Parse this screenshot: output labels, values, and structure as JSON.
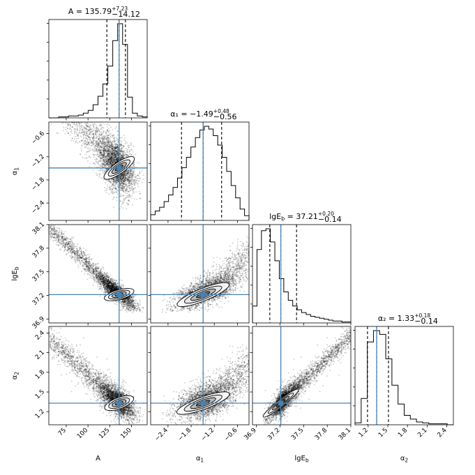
{
  "chart_data": {
    "type": "corner",
    "parameters": [
      {
        "key": "A",
        "label": "A",
        "label_sub": "",
        "range": [
          55,
          168
        ],
        "ticks": [
          75,
          100,
          125,
          150
        ],
        "tick_labels": [
          "75",
          "100",
          "125",
          "150"
        ],
        "median": 135.79,
        "q_lo": 121.67,
        "q_hi": 143.02,
        "truth": 135.79,
        "title_main": "A = 135.79",
        "title_sup": "+7.23",
        "title_sub": "−14.12",
        "hist": [
          0,
          0,
          0.01,
          0.01,
          0.02,
          0.02,
          0.03,
          0.05,
          0.08,
          0.14,
          0.23,
          0.36,
          0.55,
          0.82,
          1.0,
          0.78,
          0.22,
          0.05,
          0.02,
          0.01
        ]
      },
      {
        "key": "a1",
        "label": "α",
        "label_sub": "1",
        "range": [
          -2.85,
          -0.3
        ],
        "ticks": [
          -2.4,
          -1.8,
          -1.2,
          -0.6
        ],
        "tick_labels": [
          "−2.4",
          "−1.8",
          "−1.2",
          "−0.6"
        ],
        "median": -1.49,
        "q_lo": -2.05,
        "q_hi": -1.01,
        "truth": -1.49,
        "title_main": "α₁ = −1.49",
        "title_sup": "+0.48",
        "title_sub": "−0.56",
        "hist": [
          0.06,
          0.1,
          0.14,
          0.2,
          0.27,
          0.35,
          0.45,
          0.56,
          0.67,
          0.78,
          0.88,
          0.96,
          1.0,
          0.97,
          0.9,
          0.8,
          0.67,
          0.52,
          0.37,
          0.24,
          0.12,
          0.05
        ]
      },
      {
        "key": "lgEb",
        "label": "lgE",
        "label_sub": "b",
        "range": [
          36.85,
          38.1
        ],
        "ticks": [
          36.9,
          37.2,
          37.5,
          37.8,
          38.1
        ],
        "tick_labels": [
          "36.9",
          "37.2",
          "37.5",
          "37.8",
          "38.1"
        ],
        "median": 37.21,
        "q_lo": 37.07,
        "q_hi": 37.41,
        "truth": 37.21,
        "title_main": "lgE",
        "title_sup": "+0.20",
        "title_sub": "−0.14",
        "title_rest": " = 37.21",
        "title_main_sub": "b",
        "hist": [
          0.18,
          0.78,
          0.98,
          1.0,
          0.86,
          0.66,
          0.47,
          0.33,
          0.24,
          0.18,
          0.14,
          0.11,
          0.09,
          0.07,
          0.06,
          0.05,
          0.04,
          0.03,
          0.02,
          0.02,
          0.01,
          0.01
        ]
      },
      {
        "key": "a2",
        "label": "α",
        "label_sub": "2",
        "range": [
          1.0,
          2.5
        ],
        "ticks": [
          1.2,
          1.5,
          1.8,
          2.1,
          2.4
        ],
        "tick_labels": [
          "1.2",
          "1.5",
          "1.8",
          "2.1",
          "2.4"
        ],
        "median": 1.33,
        "q_lo": 1.19,
        "q_hi": 1.51,
        "truth": 1.33,
        "title_main": "α₂ = 1.33",
        "title_sup": "+0.18",
        "title_sub": "−0.14",
        "hist": [
          0.02,
          0.28,
          0.88,
          1.0,
          0.96,
          0.7,
          0.42,
          0.22,
          0.1,
          0.06,
          0.03,
          0.02,
          0.01,
          0.01,
          0.01,
          0.0
        ]
      }
    ],
    "truth_color": "#4682b4",
    "quantile_style": "dashed",
    "grid": false,
    "legend": "none"
  }
}
